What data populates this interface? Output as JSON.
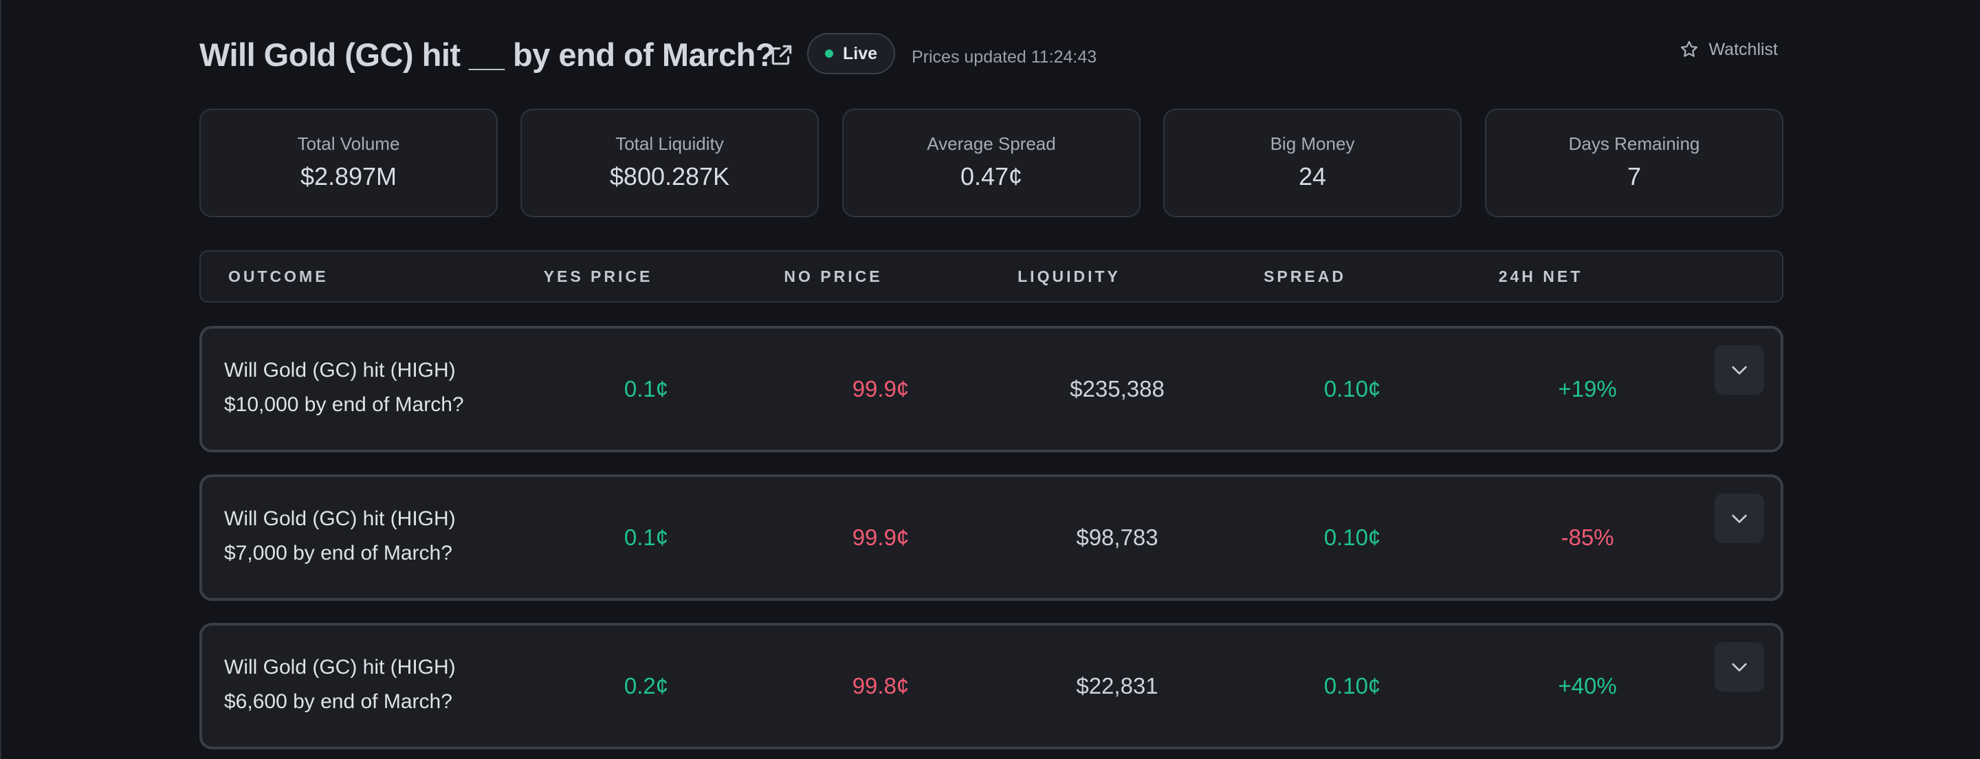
{
  "header": {
    "title": "Will Gold (GC) hit __ by end of March?",
    "live_label": "Live",
    "updated_text": "Prices updated 11:24:43",
    "watchlist_label": "Watchlist",
    "icons": {
      "external": "external-link-icon",
      "watchlist": "star-icon"
    }
  },
  "stats": [
    {
      "label": "Total Volume",
      "value": "$2.897M"
    },
    {
      "label": "Total Liquidity",
      "value": "$800.287K"
    },
    {
      "label": "Average Spread",
      "value": "0.47¢"
    },
    {
      "label": "Big Money",
      "value": "24"
    },
    {
      "label": "Days Remaining",
      "value": "7"
    }
  ],
  "table": {
    "columns": [
      "OUTCOME",
      "YES PRICE",
      "NO PRICE",
      "LIQUIDITY",
      "SPREAD",
      "24H NET"
    ],
    "rows": [
      {
        "line1": "Will Gold (GC) hit (HIGH)",
        "line2": "$10,000 by end of March?",
        "yes_price": "0.1¢",
        "no_price": "99.9¢",
        "liquidity": "$235,388",
        "spread": "0.10¢",
        "net_24h": "+19%"
      },
      {
        "line1": "Will Gold (GC) hit (HIGH)",
        "line2": "$7,000 by end of March?",
        "yes_price": "0.1¢",
        "no_price": "99.9¢",
        "liquidity": "$98,783",
        "spread": "0.10¢",
        "net_24h": "-85%"
      },
      {
        "line1": "Will Gold (GC) hit (HIGH)",
        "line2": "$6,600 by end of March?",
        "yes_price": "0.2¢",
        "no_price": "99.8¢",
        "liquidity": "$22,831",
        "spread": "0.10¢",
        "net_24h": "+40%"
      }
    ]
  },
  "colors": {
    "background": "#121419",
    "positive": "#21c38a",
    "negative": "#f25a73",
    "live_dot": "#22c48a"
  }
}
